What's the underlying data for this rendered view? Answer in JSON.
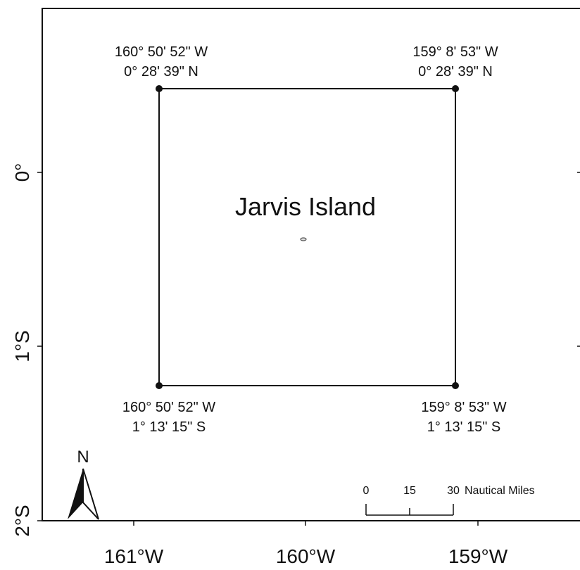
{
  "map": {
    "title": "Jarvis Island",
    "corners": {
      "nw": {
        "lon": "160° 50' 52\" W",
        "lat": "0° 28' 39\" N"
      },
      "ne": {
        "lon": "159° 8' 53\" W",
        "lat": "0° 28' 39\" N"
      },
      "sw": {
        "lon": "160° 50' 52\" W",
        "lat": "1° 13' 15\" S"
      },
      "se": {
        "lon": "159° 8' 53\" W",
        "lat": "1° 13' 15\" S"
      }
    },
    "x_ticks": [
      "161°W",
      "160°W",
      "159°W"
    ],
    "y_ticks": [
      "0°",
      "1°S",
      "2°S"
    ],
    "north_label": "N",
    "scale_bar": {
      "labels": [
        "0",
        "15",
        "30"
      ],
      "unit": "Nautical Miles"
    }
  }
}
